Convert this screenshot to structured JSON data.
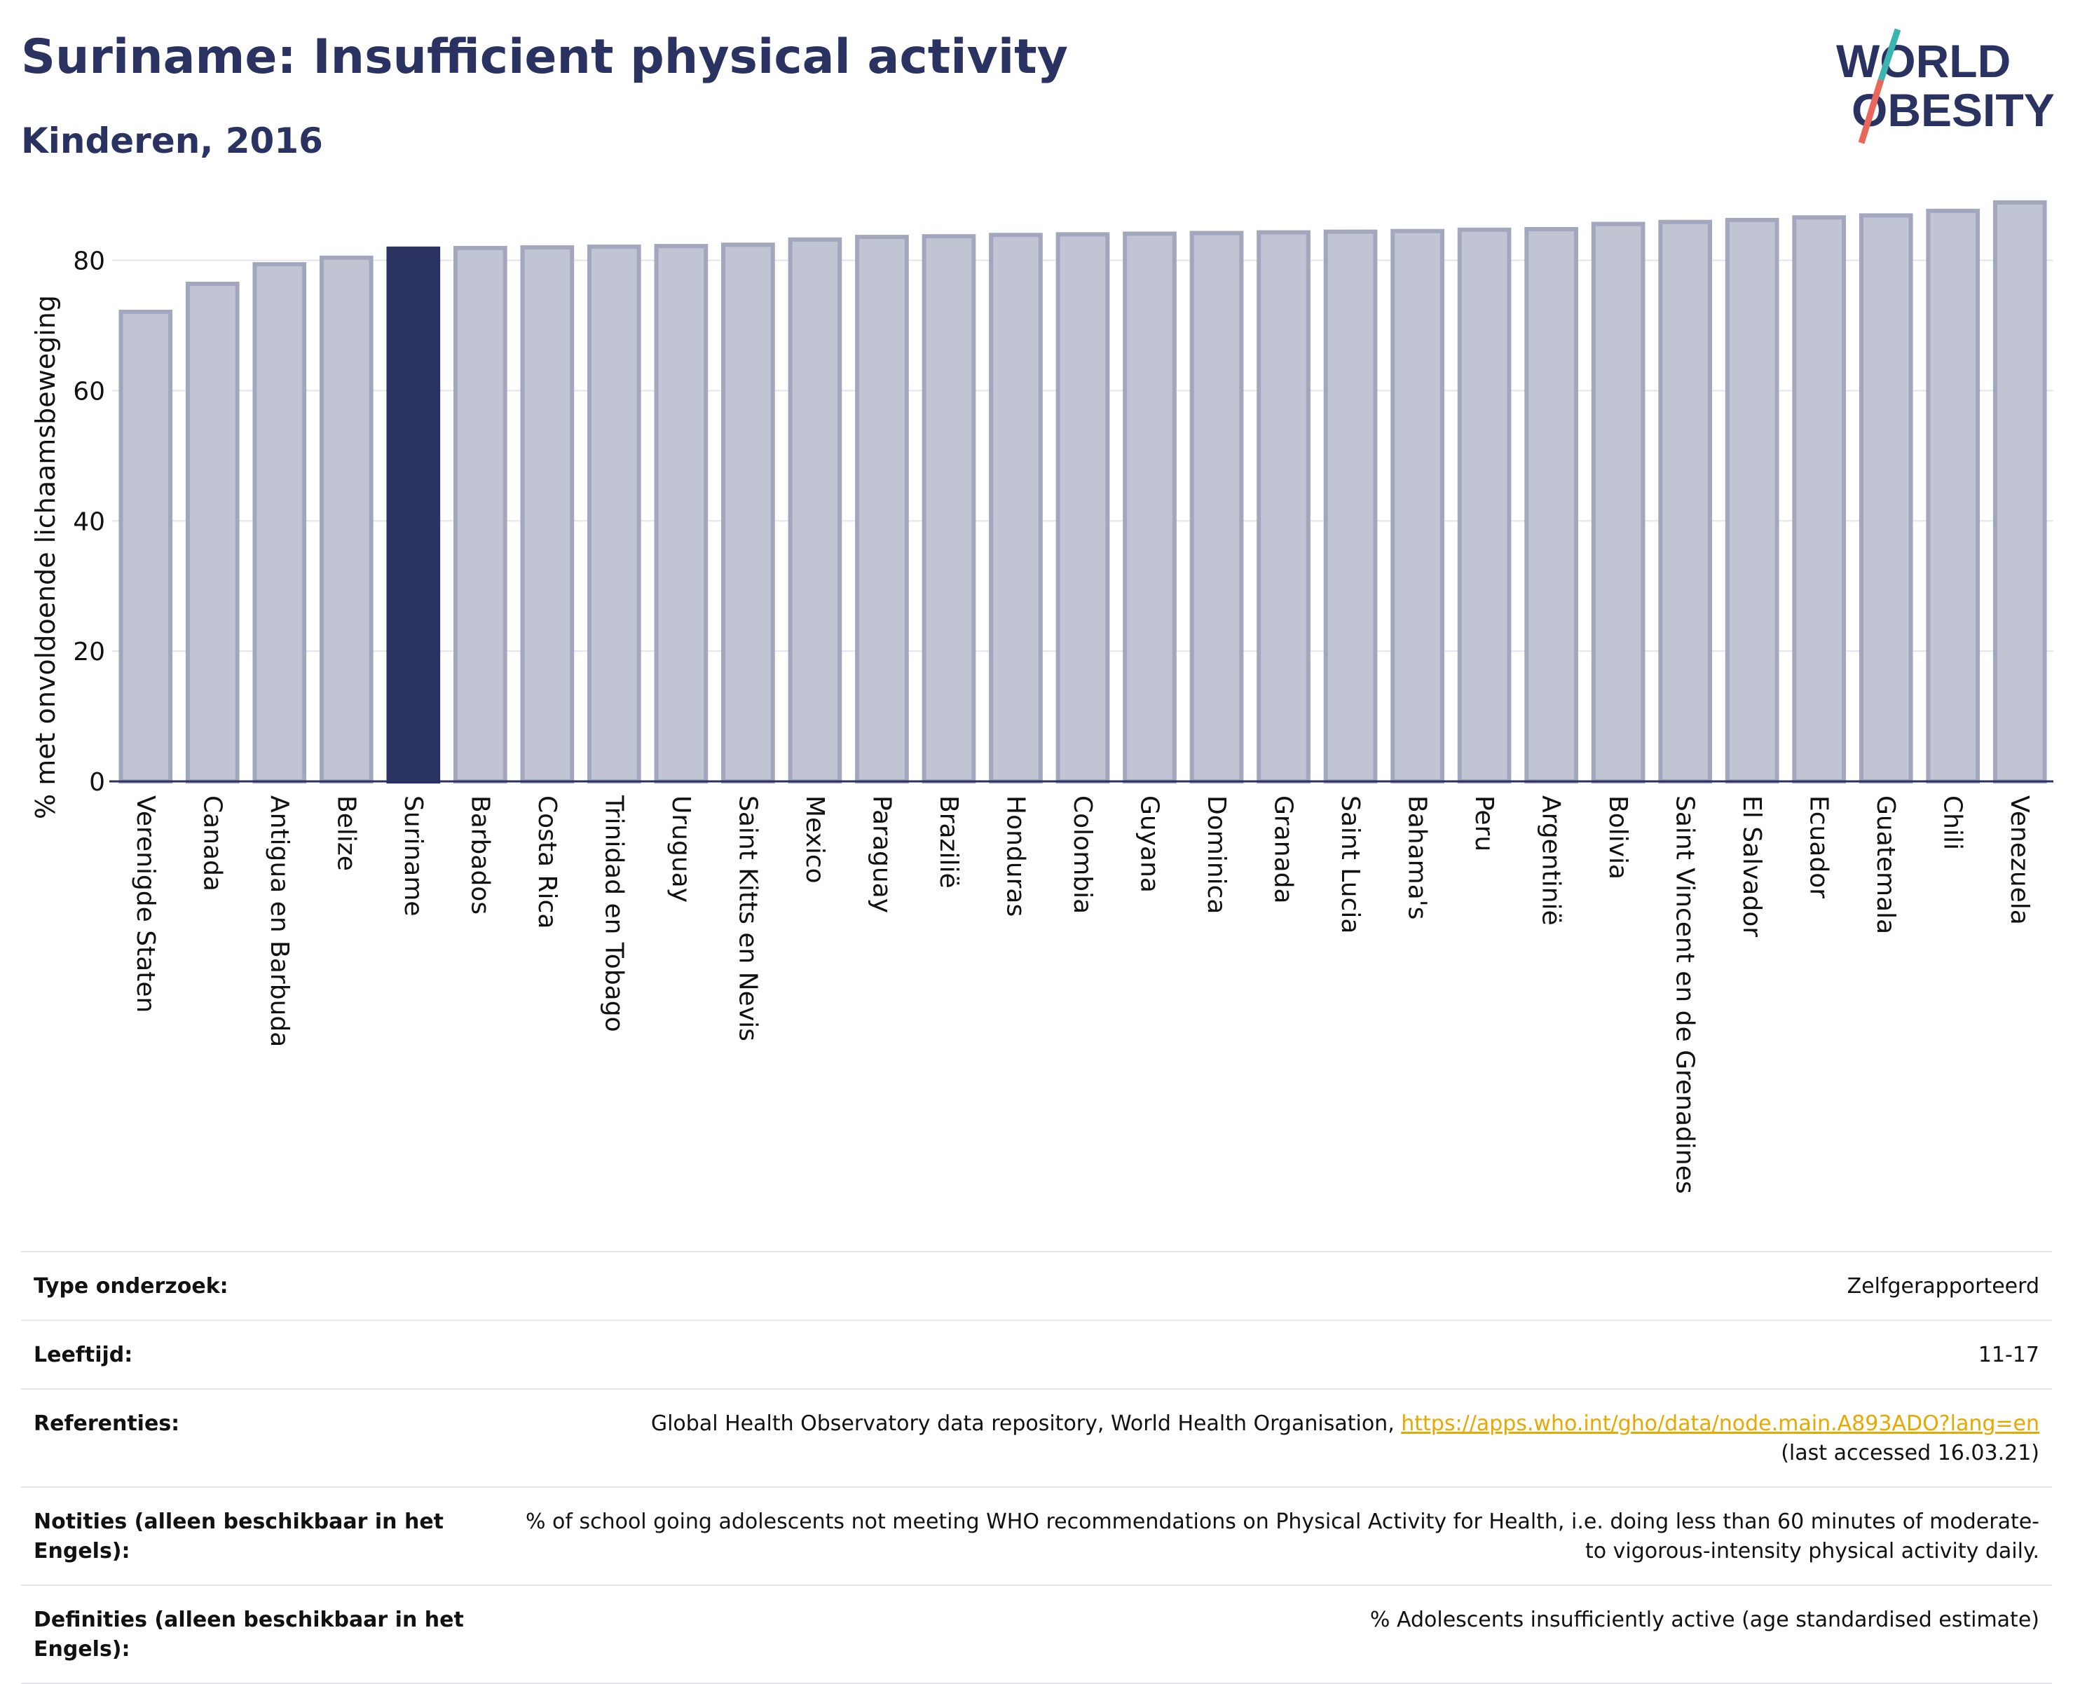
{
  "header": {
    "title": "Suriname: Insufficient physical activity",
    "subtitle": "Kinderen, 2016"
  },
  "logo": {
    "line1": "WORLD",
    "line2": "OBESITY",
    "colors": {
      "text": "#2a3262",
      "slash_top": "#3ab5b0",
      "slash_bottom": "#e8665a"
    }
  },
  "chart_data": {
    "type": "bar",
    "ylabel": "% met onvoldoende lichaamsbeweging",
    "ylim": [
      0,
      92
    ],
    "yticks": [
      0,
      20,
      40,
      60,
      80
    ],
    "grid": true,
    "highlight": "Suriname",
    "colors": {
      "bar": "#c1c4d2",
      "bar_border": "#a3a7bd",
      "highlight": "#2a3262"
    },
    "categories": [
      "Verenigde Staten",
      "Canada",
      "Antigua en Barbuda",
      "Belize",
      "Suriname",
      "Barbados",
      "Costa Rica",
      "Trinidad en Tobago",
      "Uruguay",
      "Saint Kitts en Nevis",
      "Mexico",
      "Paraguay",
      "Brazilië",
      "Honduras",
      "Colombia",
      "Guyana",
      "Dominica",
      "Granada",
      "Saint Lucia",
      "Bahama's",
      "Peru",
      "Argentinië",
      "Bolivia",
      "Saint Vincent en de Grenadines",
      "El Salvador",
      "Ecuador",
      "Guatemala",
      "Chili",
      "Venezuela"
    ],
    "values": [
      72.1,
      76.4,
      79.4,
      80.4,
      81.8,
      81.9,
      82.0,
      82.1,
      82.2,
      82.4,
      83.2,
      83.6,
      83.7,
      83.9,
      84.0,
      84.1,
      84.2,
      84.3,
      84.4,
      84.5,
      84.7,
      84.8,
      85.6,
      85.9,
      86.2,
      86.6,
      86.9,
      87.6,
      88.9
    ]
  },
  "info": {
    "rows": [
      {
        "label": "Type onderzoek:",
        "value": "Zelfgerapporteerd"
      },
      {
        "label": "Leeftijd:",
        "value": "11-17"
      },
      {
        "label": "Referenties:",
        "value": "Global Health Observatory data repository, World Health Organisation, ",
        "link": "https://apps.who.int/gho/data/node.main.A893ADO?lang=en",
        "value2": "(last accessed 16.03.21)"
      },
      {
        "label": "Notities (alleen beschikbaar in het Engels):",
        "value": "% of school going adolescents not meeting WHO recommendations on Physical Activity for Health, i.e. doing less than 60 minutes of moderate- to vigorous-intensity physical activity daily."
      },
      {
        "label": "Definities (alleen beschikbaar in het Engels):",
        "value": "% Adolescents insufficiently active (age standardised estimate)"
      }
    ]
  }
}
